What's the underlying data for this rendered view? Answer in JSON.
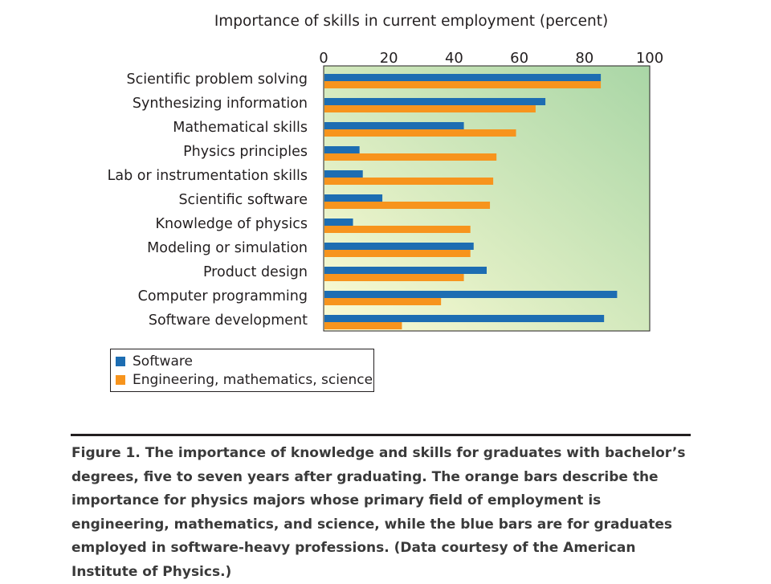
{
  "colors": {
    "software": "#1d6db2",
    "ems": "#f7941d",
    "plot_bg_top": "#a9d6a6",
    "plot_bg_bottom": "#fcfbd4"
  },
  "chart_data": {
    "type": "bar",
    "orientation": "horizontal",
    "title": "Importance of skills in current employment (percent)",
    "xlabel": "",
    "ylabel": "",
    "xlim": [
      0,
      100
    ],
    "xticks": [
      0,
      20,
      40,
      60,
      80,
      100
    ],
    "x_axis_position": "top",
    "grid": false,
    "legend_position": "bottom-left",
    "categories": [
      "Scientific problem solving",
      "Synthesizing information",
      "Mathematical skills",
      "Physics principles",
      "Lab or instrumentation skills",
      "Scientific software",
      "Knowledge of physics",
      "Modeling or simulation",
      "Product design",
      "Computer programming",
      "Software development"
    ],
    "series": [
      {
        "name": "Software",
        "color": "#1d6db2",
        "values": [
          85,
          68,
          43,
          11,
          12,
          18,
          9,
          46,
          50,
          90,
          86
        ]
      },
      {
        "name": "Engineering, mathematics, science",
        "color": "#f7941d",
        "values": [
          85,
          65,
          59,
          53,
          52,
          51,
          45,
          45,
          43,
          36,
          24
        ]
      }
    ]
  },
  "caption": "Figure 1. The importance of knowledge and skills for graduates with bachelor’s degrees, five to seven years after graduating. The orange bars describe the importance for physics majors whose primary field of employment is engineering, mathematics, and science, while the blue bars are for graduates employed in software-heavy professions. (Data courtesy of the American Institute of Physics.)"
}
